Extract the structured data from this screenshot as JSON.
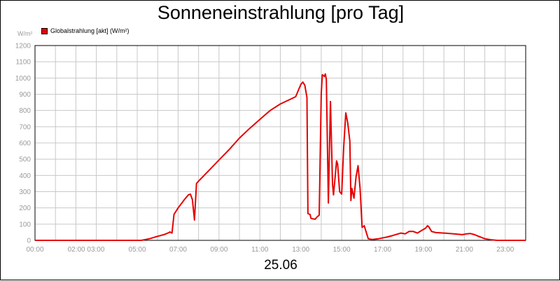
{
  "chart_data": {
    "type": "line",
    "title": "Sonneneinstrahlung [pro Tag]",
    "ylabel": "W/m²",
    "xlabel": "25.06",
    "x_ticks": [
      "00:00",
      "02:00 03:00",
      "05:00",
      "07:00",
      "09:00",
      "11:00",
      "13:00",
      "15:00",
      "17:00",
      "19:00",
      "21:00",
      "23:00"
    ],
    "x_tick_hours": [
      0,
      2.5,
      5,
      7,
      9,
      11,
      13,
      15,
      17,
      19,
      21,
      23
    ],
    "xlim": [
      0,
      24
    ],
    "ylim": [
      0,
      1200
    ],
    "y_ticks": [
      0,
      100,
      200,
      300,
      400,
      500,
      600,
      700,
      800,
      900,
      1000,
      1100,
      1200
    ],
    "grid": true,
    "legend_position": "top-left",
    "series": [
      {
        "name": "Globalstrahlung [akt] (W/m²)",
        "color": "#e60000",
        "points": [
          [
            0,
            0
          ],
          [
            5.2,
            0
          ],
          [
            5.6,
            10
          ],
          [
            6.0,
            25
          ],
          [
            6.3,
            35
          ],
          [
            6.5,
            45
          ],
          [
            6.6,
            52
          ],
          [
            6.7,
            45
          ],
          [
            6.8,
            160
          ],
          [
            7.0,
            200
          ],
          [
            7.3,
            250
          ],
          [
            7.5,
            280
          ],
          [
            7.6,
            285
          ],
          [
            7.7,
            250
          ],
          [
            7.8,
            125
          ],
          [
            7.9,
            350
          ],
          [
            8.0,
            365
          ],
          [
            8.5,
            430
          ],
          [
            9.0,
            495
          ],
          [
            9.5,
            560
          ],
          [
            10.0,
            630
          ],
          [
            10.5,
            690
          ],
          [
            11.0,
            745
          ],
          [
            11.5,
            800
          ],
          [
            12.0,
            840
          ],
          [
            12.5,
            870
          ],
          [
            12.75,
            885
          ],
          [
            13.0,
            960
          ],
          [
            13.1,
            975
          ],
          [
            13.2,
            955
          ],
          [
            13.3,
            880
          ],
          [
            13.35,
            165
          ],
          [
            13.45,
            160
          ],
          [
            13.5,
            135
          ],
          [
            13.7,
            130
          ],
          [
            13.8,
            145
          ],
          [
            13.9,
            155
          ],
          [
            14.0,
            900
          ],
          [
            14.05,
            1020
          ],
          [
            14.15,
            1010
          ],
          [
            14.2,
            1025
          ],
          [
            14.25,
            990
          ],
          [
            14.35,
            230
          ],
          [
            14.45,
            855
          ],
          [
            14.55,
            350
          ],
          [
            14.6,
            280
          ],
          [
            14.7,
            420
          ],
          [
            14.75,
            490
          ],
          [
            14.8,
            470
          ],
          [
            14.9,
            300
          ],
          [
            15.0,
            285
          ],
          [
            15.1,
            575
          ],
          [
            15.2,
            785
          ],
          [
            15.3,
            720
          ],
          [
            15.4,
            610
          ],
          [
            15.45,
            245
          ],
          [
            15.5,
            320
          ],
          [
            15.6,
            260
          ],
          [
            15.7,
            390
          ],
          [
            15.8,
            460
          ],
          [
            15.9,
            320
          ],
          [
            16.0,
            80
          ],
          [
            16.1,
            90
          ],
          [
            16.3,
            10
          ],
          [
            16.5,
            5
          ],
          [
            16.8,
            10
          ],
          [
            17.2,
            20
          ],
          [
            17.5,
            30
          ],
          [
            17.9,
            45
          ],
          [
            18.1,
            40
          ],
          [
            18.3,
            55
          ],
          [
            18.5,
            55
          ],
          [
            18.7,
            45
          ],
          [
            18.9,
            60
          ],
          [
            19.1,
            75
          ],
          [
            19.2,
            90
          ],
          [
            19.25,
            85
          ],
          [
            19.4,
            55
          ],
          [
            19.6,
            48
          ],
          [
            20.0,
            45
          ],
          [
            20.5,
            40
          ],
          [
            20.9,
            35
          ],
          [
            21.1,
            40
          ],
          [
            21.3,
            42
          ],
          [
            21.5,
            35
          ],
          [
            21.8,
            20
          ],
          [
            22.0,
            10
          ],
          [
            22.3,
            4
          ],
          [
            22.6,
            0
          ],
          [
            24.0,
            0
          ]
        ]
      }
    ]
  }
}
